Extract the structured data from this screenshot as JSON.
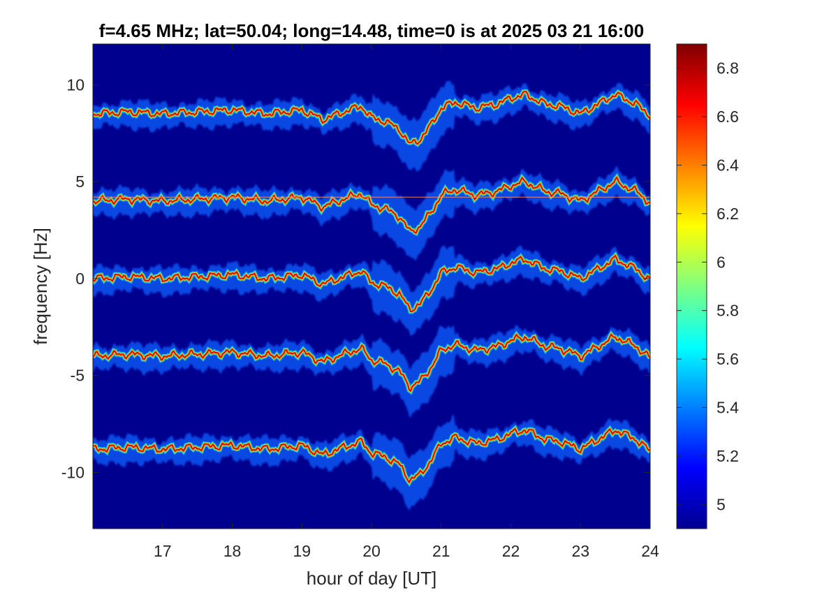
{
  "chart_data": {
    "type": "heatmap",
    "title": "f=4.65 MHz;  lat=50.04; long=14.48, time=0 is at 2025 03 21 16:00",
    "xlabel": "hour of day [UT]",
    "ylabel": "frequency [Hz]",
    "xlim": [
      16,
      24
    ],
    "ylim": [
      -12.9,
      12.1
    ],
    "x_ticks": [
      17,
      18,
      19,
      20,
      21,
      22,
      23,
      24
    ],
    "y_ticks": [
      10,
      5,
      0,
      -5,
      -10
    ],
    "colorbar": {
      "colormap": "jet",
      "range": [
        4.9,
        6.9
      ],
      "ticks": [
        "5",
        "5.2",
        "5.4",
        "5.6",
        "5.8",
        "6",
        "6.2",
        "6.4",
        "6.6",
        "6.8"
      ]
    },
    "background_color": "#00008f",
    "traces": [
      {
        "offset": 8.5
      },
      {
        "offset": 4.0
      },
      {
        "offset": 0.0
      },
      {
        "offset": -4.0
      },
      {
        "offset": -8.8
      }
    ],
    "trend_profile": {
      "hours": [
        16,
        16.5,
        17,
        17.5,
        18,
        18.5,
        19,
        19.3,
        19.6,
        19.85,
        20.0,
        20.2,
        20.4,
        20.55,
        20.7,
        20.85,
        21.0,
        21.2,
        21.5,
        21.8,
        22.0,
        22.2,
        22.5,
        22.7,
        23.0,
        23.3,
        23.5,
        23.8,
        24
      ],
      "shift": [
        0,
        0.1,
        0,
        0.1,
        0.2,
        0,
        0.2,
        -0.3,
        0.1,
        0.4,
        -0.2,
        -0.4,
        -0.8,
        -1.6,
        -1.3,
        -0.6,
        0.3,
        0.6,
        0.3,
        0.5,
        0.8,
        1.0,
        0.5,
        0.4,
        0.0,
        0.6,
        1.0,
        0.5,
        -0.1
      ]
    },
    "horizontal_line": {
      "y": 4.2
    },
    "grid": false,
    "legend": "none"
  }
}
